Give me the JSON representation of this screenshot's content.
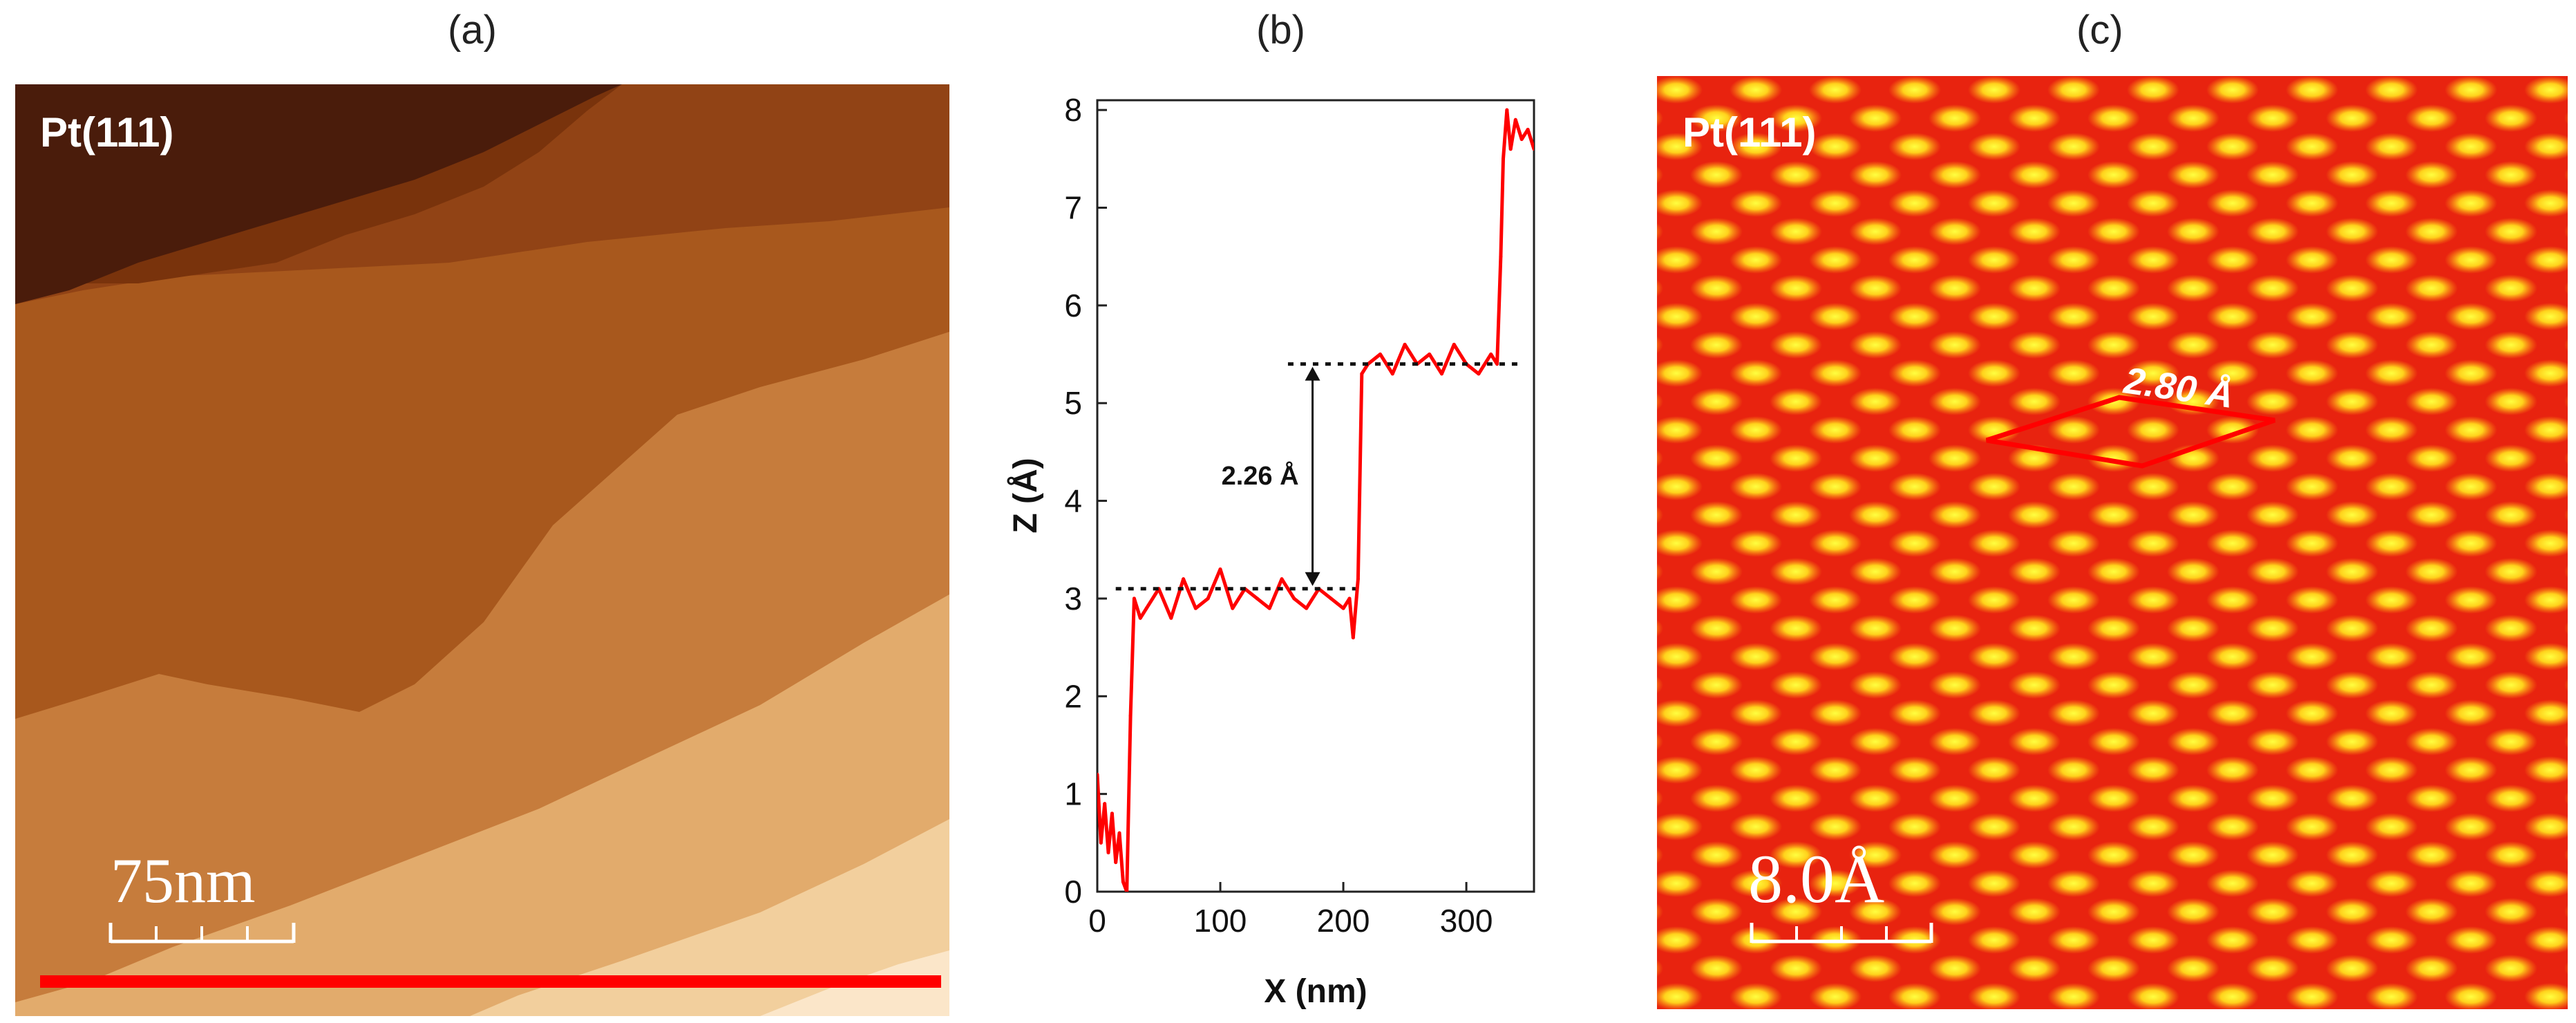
{
  "panels": {
    "a": {
      "label": "(a)",
      "sample": "Pt(111)",
      "scale_bar": "75nm"
    },
    "b": {
      "label": "(b)"
    },
    "c": {
      "label": "(c)",
      "sample": "Pt(111)",
      "scale_bar": "8.0Å",
      "lattice_label": "2.80 Å"
    }
  },
  "chart_data": {
    "type": "line",
    "title": "",
    "xlabel": "X (nm)",
    "ylabel": "Z (Å)",
    "xlim": [
      0,
      355
    ],
    "ylim": [
      0,
      8.1
    ],
    "xticks": [
      0,
      100,
      200,
      300
    ],
    "yticks": [
      0,
      1,
      2,
      3,
      4,
      5,
      6,
      7,
      8
    ],
    "grid": false,
    "series": [
      {
        "color": "#ff0000",
        "x": [
          0,
          3,
          6,
          9,
          12,
          15,
          18,
          21,
          24,
          27,
          30,
          35,
          40,
          50,
          60,
          70,
          80,
          90,
          100,
          110,
          120,
          130,
          140,
          150,
          160,
          170,
          180,
          190,
          200,
          205,
          208,
          212,
          215,
          220,
          230,
          240,
          250,
          260,
          270,
          280,
          290,
          300,
          310,
          320,
          325,
          328,
          330,
          333,
          336,
          340,
          345,
          350,
          355
        ],
        "y": [
          1.2,
          0.5,
          0.9,
          0.4,
          0.8,
          0.3,
          0.6,
          0.1,
          0.0,
          1.8,
          3.0,
          2.8,
          2.9,
          3.1,
          2.8,
          3.2,
          2.9,
          3.0,
          3.3,
          2.9,
          3.1,
          3.0,
          2.9,
          3.2,
          3.0,
          2.9,
          3.1,
          3.0,
          2.9,
          3.0,
          2.6,
          3.2,
          5.3,
          5.4,
          5.5,
          5.3,
          5.6,
          5.4,
          5.5,
          5.3,
          5.6,
          5.4,
          5.3,
          5.5,
          5.4,
          6.5,
          7.5,
          8.0,
          7.6,
          7.9,
          7.7,
          7.8,
          7.6
        ]
      }
    ],
    "annotations": [
      {
        "text": "2.26 Å",
        "lower_level": 3.1,
        "upper_level": 5.4,
        "x": 175
      }
    ]
  }
}
